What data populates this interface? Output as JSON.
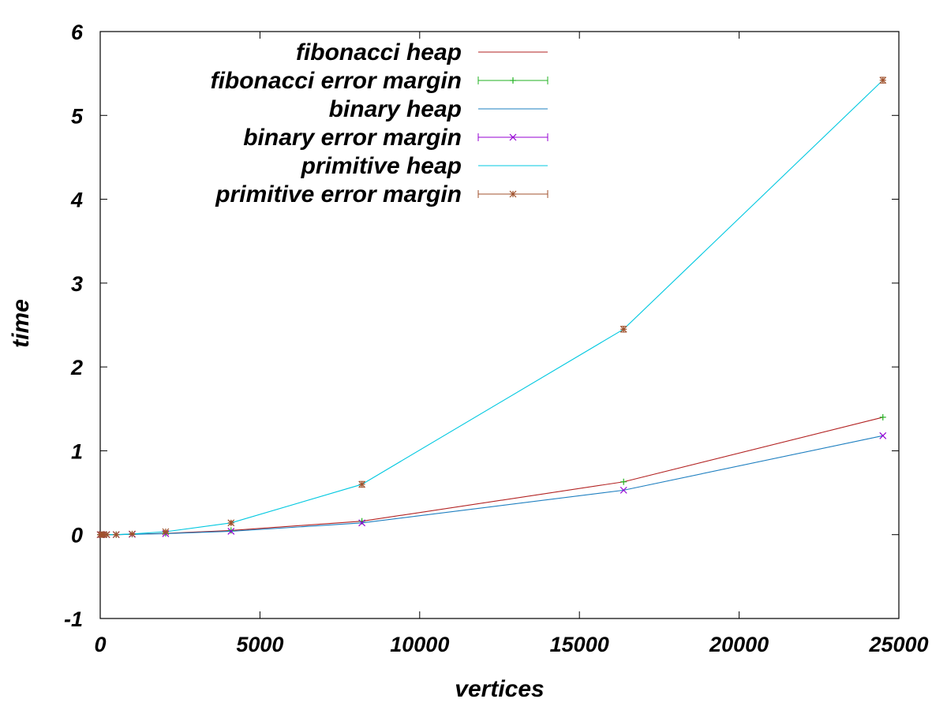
{
  "chart_data": {
    "type": "line",
    "title": "",
    "xlabel": "vertices",
    "ylabel": "time",
    "xlim": [
      0,
      25000
    ],
    "ylim": [
      -1,
      6
    ],
    "xticks": [
      0,
      5000,
      10000,
      15000,
      20000,
      25000
    ],
    "yticks": [
      -1,
      0,
      1,
      2,
      3,
      4,
      5,
      6
    ],
    "grid": false,
    "legend_position": "top-left",
    "series": [
      {
        "name": "fibonacci heap",
        "kind": "line",
        "color": "#b22222",
        "x": [
          0,
          50,
          100,
          200,
          500,
          1000,
          2048,
          4096,
          8192,
          16384,
          24500
        ],
        "y": [
          0,
          0,
          0,
          0,
          0,
          0.005,
          0.015,
          0.05,
          0.16,
          0.63,
          1.4
        ]
      },
      {
        "name": "fibonacci error margin",
        "kind": "errorbar",
        "marker": "+",
        "color": "#22b222",
        "x": [
          0,
          50,
          100,
          200,
          500,
          1000,
          2048,
          4096,
          8192,
          16384,
          24500
        ],
        "y": [
          0,
          0,
          0,
          0,
          0,
          0.005,
          0.015,
          0.05,
          0.16,
          0.63,
          1.4
        ]
      },
      {
        "name": "binary heap",
        "kind": "line",
        "color": "#1e7fc0",
        "x": [
          0,
          50,
          100,
          200,
          500,
          1000,
          2048,
          4096,
          8192,
          16384,
          24500
        ],
        "y": [
          0,
          0,
          0,
          0,
          0,
          0.004,
          0.012,
          0.04,
          0.14,
          0.53,
          1.18
        ]
      },
      {
        "name": "binary error margin",
        "kind": "errorbar",
        "marker": "x",
        "color": "#9400d3",
        "x": [
          0,
          50,
          100,
          200,
          500,
          1000,
          2048,
          4096,
          8192,
          16384,
          24500
        ],
        "y": [
          0,
          0,
          0,
          0,
          0,
          0.004,
          0.012,
          0.04,
          0.14,
          0.53,
          1.18
        ]
      },
      {
        "name": "primitive heap",
        "kind": "line",
        "color": "#00c8e0",
        "x": [
          0,
          50,
          100,
          200,
          500,
          1000,
          2048,
          4096,
          8192,
          16384,
          24500
        ],
        "y": [
          0,
          0,
          0,
          0,
          0,
          0.008,
          0.035,
          0.14,
          0.6,
          2.45,
          5.42
        ]
      },
      {
        "name": "primitive error margin",
        "kind": "errorbar",
        "marker": "*",
        "color": "#a0522d",
        "x": [
          0,
          50,
          100,
          200,
          500,
          1000,
          2048,
          4096,
          8192,
          16384,
          24500
        ],
        "y": [
          0,
          0,
          0,
          0,
          0,
          0.008,
          0.035,
          0.14,
          0.6,
          2.45,
          5.42
        ],
        "err": [
          0,
          0,
          0,
          0,
          0,
          0.005,
          0.01,
          0.02,
          0.035,
          0.035,
          0.035
        ]
      }
    ]
  }
}
